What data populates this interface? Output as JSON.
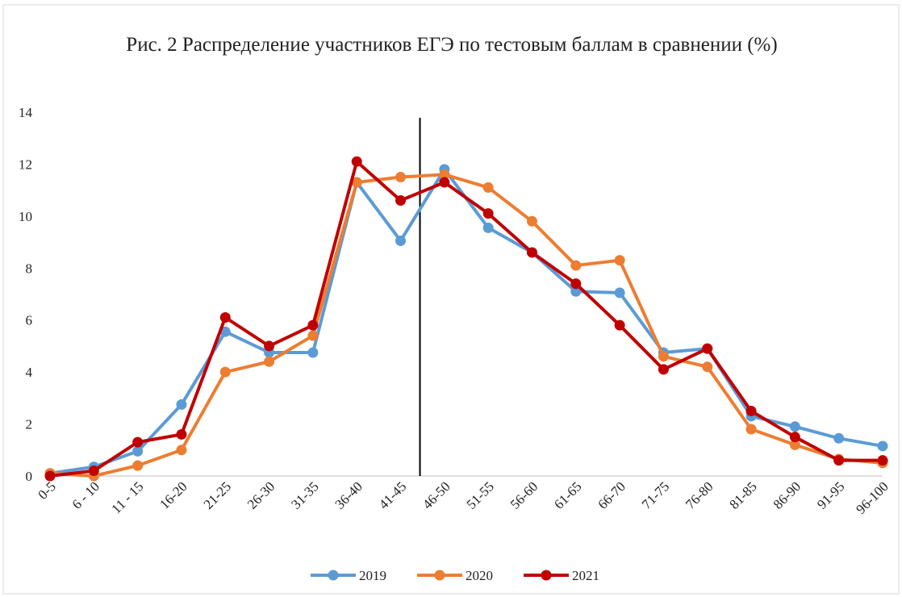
{
  "chart_data": {
    "type": "line",
    "title": "Рис. 2 Распределение участников ЕГЭ по тестовым баллам в сравнении (%)",
    "categories": [
      "0-5",
      "6 - 10",
      "11 - 15",
      "16-20",
      "21-25",
      "26-30",
      "31-35",
      "36-40",
      "41-45",
      "46-50",
      "51-55",
      "56-60",
      "61-65",
      "66-70",
      "71-75",
      "76-80",
      "81-85",
      "86-90",
      "91-95",
      "96-100"
    ],
    "series": [
      {
        "name": "2019",
        "color": "#5b9bd5",
        "values": [
          0.1,
          0.35,
          0.95,
          2.75,
          5.55,
          4.75,
          4.75,
          11.3,
          9.05,
          11.8,
          9.55,
          8.6,
          7.1,
          7.05,
          4.75,
          4.9,
          2.3,
          1.9,
          1.45,
          1.15
        ]
      },
      {
        "name": "2020",
        "color": "#ed7d31",
        "values": [
          0.1,
          0,
          0.4,
          1.0,
          4.0,
          4.4,
          5.4,
          11.3,
          11.5,
          11.6,
          11.1,
          9.8,
          8.1,
          8.3,
          4.6,
          4.2,
          1.8,
          1.2,
          0.65,
          0.5
        ]
      },
      {
        "name": "2021",
        "color": "#c00000",
        "values": [
          0,
          0.2,
          1.3,
          1.6,
          6.1,
          5.0,
          5.8,
          12.1,
          10.6,
          11.3,
          10.1,
          8.6,
          7.4,
          5.8,
          4.1,
          4.9,
          2.5,
          1.5,
          0.6,
          0.6
        ]
      }
    ],
    "ylim": [
      0,
      14
    ],
    "yticks": [
      0,
      2,
      4,
      6,
      8,
      10,
      12,
      14
    ],
    "grid": false,
    "legend": "bottom"
  }
}
